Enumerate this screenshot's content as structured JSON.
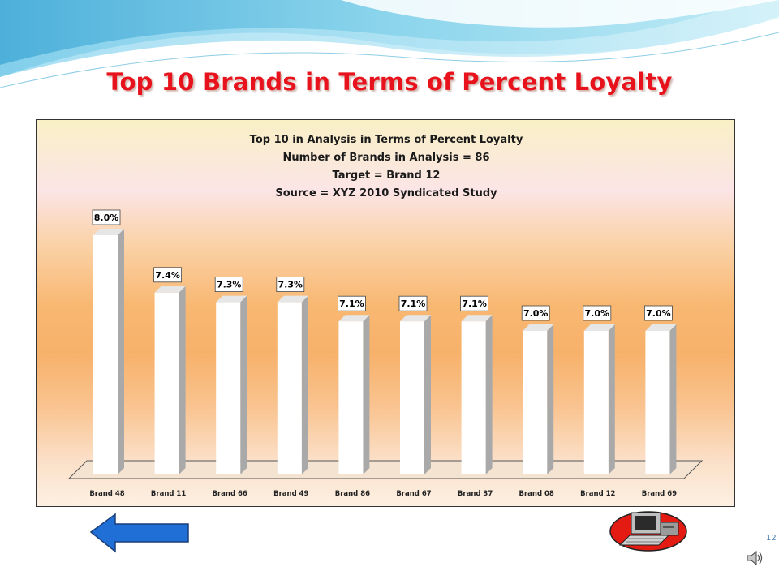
{
  "slide": {
    "title": "Top 10 Brands in Terms of Percent Loyalty",
    "page_number": "12"
  },
  "icons": {
    "back": "left-arrow-icon",
    "computer": "computer-icon",
    "audio": "speaker-icon"
  },
  "colors": {
    "title": "#e8121c",
    "bar_face": "#ffffff",
    "bar_side": "#a9a9a9",
    "back_arrow": "#1f6fd6"
  },
  "chart_data": {
    "type": "bar",
    "title": [
      "Top 10 in Analysis in Terms of Percent Loyalty",
      "Number of Brands in Analysis = 86",
      "Target = Brand 12",
      "Source = XYZ 2010 Syndicated Study"
    ],
    "categories": [
      "Brand 48",
      "Brand 11",
      "Brand 66",
      "Brand 49",
      "Brand 86",
      "Brand 67",
      "Brand 37",
      "Brand 08",
      "Brand 12",
      "Brand 69"
    ],
    "values": [
      8.0,
      7.4,
      7.3,
      7.3,
      7.1,
      7.1,
      7.1,
      7.0,
      7.0,
      7.0
    ],
    "data_labels": [
      "8.0%",
      "7.4%",
      "7.3%",
      "7.3%",
      "7.1%",
      "7.1%",
      "7.1%",
      "7.0%",
      "7.0%",
      "7.0%"
    ],
    "ylim": [
      5.5,
      8.0
    ],
    "grid": false,
    "legend": "none",
    "style": "3d"
  }
}
